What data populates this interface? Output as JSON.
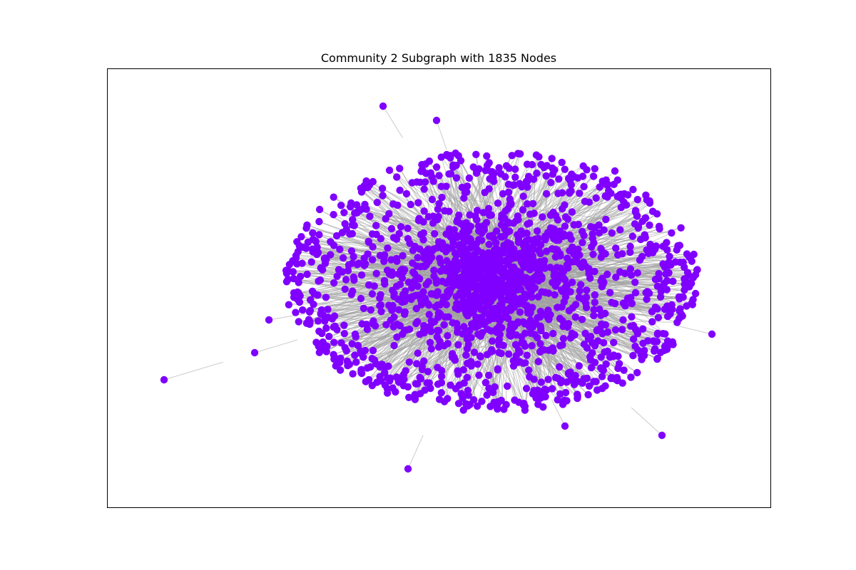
{
  "figure": {
    "title": "Community 2 Subgraph with 1835 Nodes"
  },
  "graph": {
    "node_count": 1835,
    "node_color": "#8000ff",
    "edge_color": "#a0a0a0",
    "frame_color": "#000000",
    "background": "#ffffff",
    "show_axes_ticks": false
  }
}
